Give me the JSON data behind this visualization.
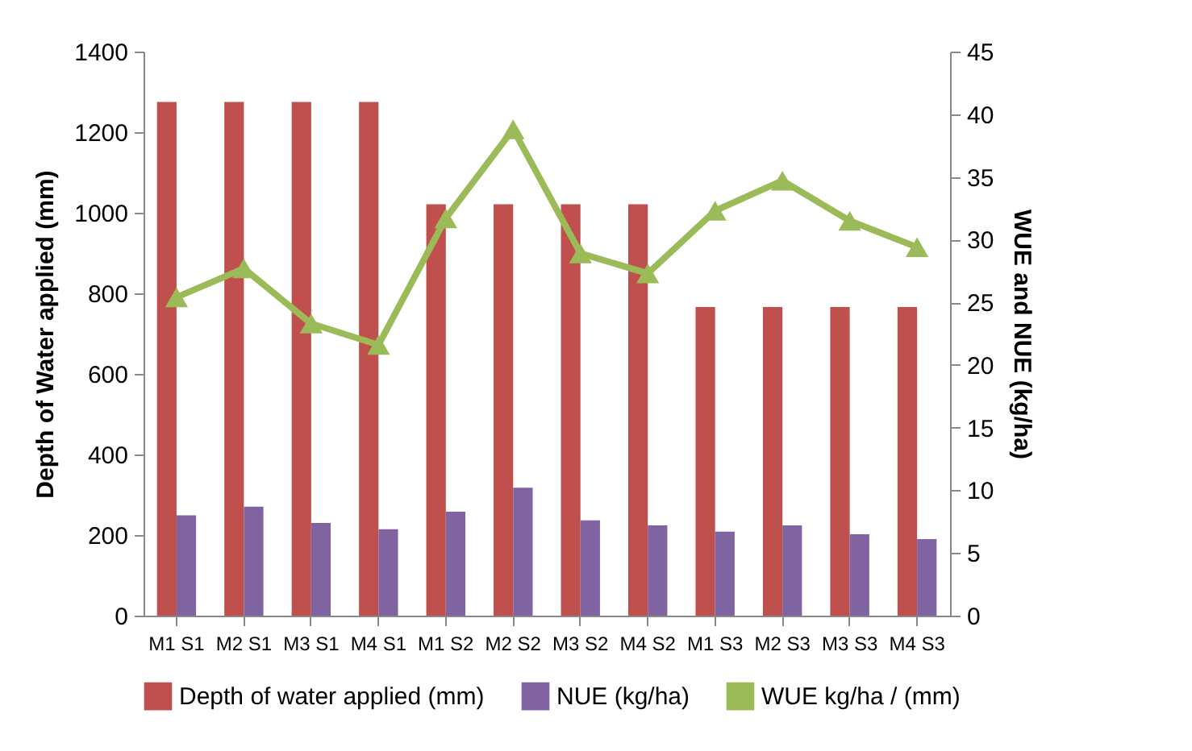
{
  "chart_data": {
    "type": "bar",
    "categories": [
      "M1 S1",
      "M2 S1",
      "M3 S1",
      "M4 S1",
      "M1 S2",
      "M2 S2",
      "M3 S2",
      "M4 S2",
      "M1 S3",
      "M2 S3",
      "M3 S3",
      "M4 S3"
    ],
    "ylabel": "Depth of Water  applied (mm)",
    "y2label": "WUE and NUE (kg/ha)",
    "ylim": [
      0,
      1400
    ],
    "yticks": [
      0,
      200,
      400,
      600,
      800,
      1000,
      1200,
      1400
    ],
    "y2lim": [
      0,
      45
    ],
    "y2ticks": [
      0,
      5,
      10,
      15,
      20,
      25,
      30,
      35,
      40,
      45
    ],
    "series": [
      {
        "name": "Depth of water applied (mm)",
        "color": "#c0504d",
        "values": [
          1275,
          1275,
          1275,
          1275,
          1021,
          1021,
          1021,
          1021,
          766,
          766,
          766,
          766
        ]
      },
      {
        "name": "NUE (kg/ha)",
        "color": "#8064a2",
        "axis": "y2",
        "values": [
          8.0,
          8.7,
          7.4,
          6.9,
          8.3,
          10.2,
          7.6,
          7.2,
          6.7,
          7.2,
          6.5,
          6.1
        ]
      },
      {
        "name": "WUE  kg/ha / (mm)",
        "type": "line",
        "color": "#9bbb59",
        "axis": "y2",
        "marker": "triangle",
        "values": [
          25.4,
          27.7,
          23.3,
          21.6,
          31.7,
          38.8,
          28.9,
          27.3,
          32.3,
          34.7,
          31.5,
          29.4
        ]
      }
    ],
    "legend": "bottom",
    "grid": false
  }
}
